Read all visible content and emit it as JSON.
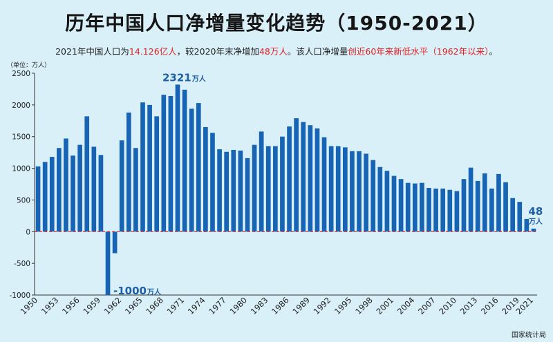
{
  "title": "历年中国人口净增量变化趋势（1950-2021）",
  "subtitle": {
    "part1": "2021年中国人口为",
    "hl1": "14.126亿人",
    "part2": "，较2020年末净增加",
    "hl2": "48万人",
    "part3": "。该人口净增量",
    "hl3": "创近60年来新低水平（1962年以来）",
    "part4": "。"
  },
  "unit_label": "（单位：万人）",
  "source": "国家统计局",
  "colors": {
    "bar": "#1864b4",
    "zero_line": "#e03030",
    "annotation": "#1f5fa8",
    "background": "#d9f0f9"
  },
  "chart_data": {
    "type": "bar",
    "title": "历年中国人口净增量变化趋势（1950-2021）",
    "ylabel": "万人",
    "ylim": [
      -1000,
      2500
    ],
    "yticks": [
      -1000,
      -500,
      0,
      500,
      1000,
      1500,
      2000,
      2500
    ],
    "xtick_labels": [
      "1950",
      "1953",
      "1956",
      "1959",
      "1962",
      "1965",
      "1968",
      "1971",
      "1974",
      "1977",
      "1980",
      "1983",
      "1986",
      "1989",
      "1992",
      "1995",
      "1998",
      "2001",
      "2004",
      "2007",
      "2010",
      "2013",
      "2016",
      "2019",
      "2021"
    ],
    "categories": [
      1950,
      1951,
      1952,
      1953,
      1954,
      1955,
      1956,
      1957,
      1958,
      1959,
      1960,
      1961,
      1962,
      1963,
      1964,
      1965,
      1966,
      1967,
      1968,
      1969,
      1970,
      1971,
      1972,
      1973,
      1974,
      1975,
      1976,
      1977,
      1978,
      1979,
      1980,
      1981,
      1982,
      1983,
      1984,
      1985,
      1986,
      1987,
      1988,
      1989,
      1990,
      1991,
      1992,
      1993,
      1994,
      1995,
      1996,
      1997,
      1998,
      1999,
      2000,
      2001,
      2002,
      2003,
      2004,
      2005,
      2006,
      2007,
      2008,
      2009,
      2010,
      2011,
      2012,
      2013,
      2014,
      2015,
      2016,
      2017,
      2018,
      2019,
      2020,
      2021
    ],
    "values": [
      1030,
      1100,
      1180,
      1320,
      1470,
      1200,
      1370,
      1820,
      1340,
      1210,
      -1000,
      -340,
      1440,
      1880,
      1320,
      2040,
      2000,
      1820,
      2160,
      2140,
      2321,
      2240,
      1940,
      2030,
      1650,
      1560,
      1300,
      1260,
      1290,
      1280,
      1160,
      1370,
      1580,
      1350,
      1350,
      1500,
      1660,
      1790,
      1730,
      1680,
      1630,
      1490,
      1350,
      1350,
      1330,
      1270,
      1270,
      1230,
      1130,
      1020,
      960,
      880,
      830,
      770,
      760,
      770,
      690,
      680,
      680,
      660,
      640,
      830,
      1010,
      800,
      920,
      680,
      910,
      780,
      530,
      470,
      200,
      48
    ],
    "annotations": [
      {
        "value": "2321",
        "unit": "万人"
      },
      {
        "value": "-1000",
        "unit": "万人"
      },
      {
        "value": "48",
        "unit": "万人"
      }
    ]
  }
}
